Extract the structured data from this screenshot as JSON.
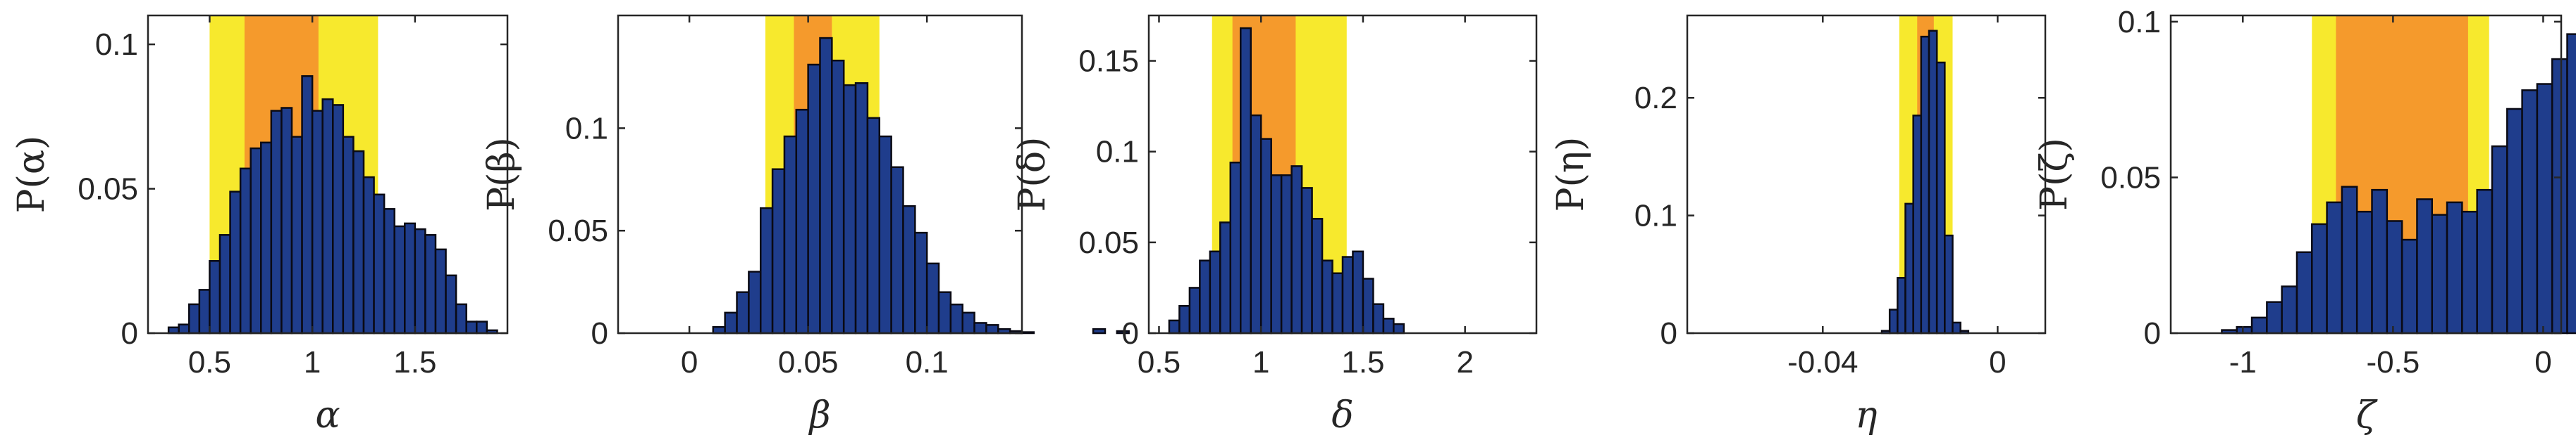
{
  "colors": {
    "bar_fill": "#1f3d8c",
    "bar_edge": "#0a0a14",
    "ci95": "#f7e92d",
    "ci68": "#f59a2c",
    "axis": "#262626"
  },
  "chart_data": [
    {
      "type": "bar",
      "subtype": "histogram",
      "xlabel": "α",
      "ylabel": "P(α)",
      "xlim": [
        0.2,
        1.95
      ],
      "ylim": [
        0,
        0.11
      ],
      "xticks": [
        0.5,
        1,
        1.5
      ],
      "xtick_labels": [
        "0.5",
        "1",
        "1.5"
      ],
      "yticks": [
        0,
        0.05,
        0.1
      ],
      "ytick_labels": [
        "0",
        "0.05",
        "0.1"
      ],
      "bin_start": 0.3,
      "bin_width": 0.05,
      "values": [
        0.002,
        0.003,
        0.01,
        0.015,
        0.025,
        0.034,
        0.049,
        0.057,
        0.064,
        0.066,
        0.077,
        0.078,
        0.068,
        0.089,
        0.077,
        0.081,
        0.079,
        0.068,
        0.063,
        0.054,
        0.048,
        0.043,
        0.037,
        0.038,
        0.036,
        0.034,
        0.029,
        0.02,
        0.01,
        0.004,
        0.004,
        0.001
      ],
      "bands": [
        {
          "name": "95%",
          "from": 0.5,
          "to": 1.32
        },
        {
          "name": "68%",
          "from": 0.67,
          "to": 1.03
        }
      ]
    },
    {
      "type": "bar",
      "subtype": "histogram",
      "xlabel": "β",
      "ylabel": "P(β)",
      "xlim": [
        -0.03,
        0.14
      ],
      "ylim": [
        0,
        0.155
      ],
      "xticks": [
        0,
        0.05,
        0.1
      ],
      "xtick_labels": [
        "0",
        "0.05",
        "0.1"
      ],
      "yticks": [
        0,
        0.05,
        0.1
      ],
      "ytick_labels": [
        "0",
        "0.05",
        "0.1"
      ],
      "bin_start": 0.01,
      "bin_width": 0.005,
      "values": [
        0.003,
        0.01,
        0.02,
        0.03,
        0.061,
        0.08,
        0.096,
        0.109,
        0.131,
        0.144,
        0.133,
        0.121,
        0.122,
        0.105,
        0.096,
        0.081,
        0.062,
        0.049,
        0.034,
        0.02,
        0.014,
        0.01,
        0.005,
        0.004,
        0.002,
        0.001,
        0.0005,
        0.0,
        0.0,
        0.0,
        0.0,
        0.0,
        0.002,
        0.0,
        0.001
      ],
      "bands": [
        {
          "name": "95%",
          "from": 0.032,
          "to": 0.08
        },
        {
          "name": "68%",
          "from": 0.044,
          "to": 0.06
        }
      ]
    },
    {
      "type": "bar",
      "subtype": "histogram",
      "xlabel": "δ",
      "ylabel": "P(δ)",
      "xlim": [
        0.45,
        2.35
      ],
      "ylim": [
        0,
        0.175
      ],
      "xticks": [
        0.5,
        1,
        1.5,
        2
      ],
      "xtick_labels": [
        "0.5",
        "1",
        "1.5",
        "2"
      ],
      "yticks": [
        0,
        0.05,
        0.1,
        0.15
      ],
      "ytick_labels": [
        "0",
        "0.05",
        "0.1",
        "0.15"
      ],
      "bin_start": 0.55,
      "bin_width": 0.05,
      "values": [
        0.007,
        0.015,
        0.025,
        0.04,
        0.045,
        0.061,
        0.094,
        0.168,
        0.12,
        0.107,
        0.087,
        0.087,
        0.092,
        0.08,
        0.063,
        0.04,
        0.033,
        0.042,
        0.045,
        0.03,
        0.016,
        0.008,
        0.005
      ],
      "bands": [
        {
          "name": "95%",
          "from": 0.76,
          "to": 1.42
        },
        {
          "name": "68%",
          "from": 0.86,
          "to": 1.17
        }
      ]
    },
    {
      "type": "bar",
      "subtype": "histogram",
      "xlabel": "η",
      "ylabel": "P(η)",
      "xlim": [
        -0.071,
        0.0109
      ],
      "ylim": [
        0,
        0.27
      ],
      "xticks": [
        -0.04,
        0
      ],
      "xtick_labels": [
        "-0.04",
        "0"
      ],
      "yticks": [
        0,
        0.1,
        0.2
      ],
      "ytick_labels": [
        "0",
        "0.1",
        "0.2"
      ],
      "bin_start": -0.0265,
      "bin_width": 0.0018,
      "values": [
        0.002,
        0.02,
        0.047,
        0.11,
        0.185,
        0.252,
        0.257,
        0.23,
        0.083,
        0.009,
        0.002
      ],
      "bands": [
        {
          "name": "95%",
          "from": -0.0225,
          "to": -0.0103
        },
        {
          "name": "68%",
          "from": -0.0184,
          "to": -0.0146
        }
      ]
    },
    {
      "type": "bar",
      "subtype": "histogram",
      "xlabel": "ζ",
      "ylabel": "P(ζ)",
      "xlim": [
        -1.24,
        0.06
      ],
      "ylim": [
        0,
        0.102
      ],
      "xticks": [
        -1,
        -0.5,
        0
      ],
      "xtick_labels": [
        "-1",
        "-0.5",
        "0"
      ],
      "yticks": [
        0,
        0.05,
        0.1
      ],
      "ytick_labels": [
        "0",
        "0.05",
        "0.1"
      ],
      "bin_start": -1.07,
      "bin_width": 0.05,
      "values": [
        0.001,
        0.002,
        0.005,
        0.01,
        0.015,
        0.026,
        0.035,
        0.042,
        0.047,
        0.039,
        0.046,
        0.036,
        0.03,
        0.043,
        0.038,
        0.042,
        0.039,
        0.046,
        0.06,
        0.072,
        0.078,
        0.08,
        0.088,
        0.096,
        0.077,
        0.053,
        0.034,
        0.021,
        0.02,
        0.01,
        0.003
      ],
      "bands": [
        {
          "name": "95%",
          "from": -0.77,
          "to": -0.18
        },
        {
          "name": "68%",
          "from": -0.69,
          "to": -0.25
        }
      ]
    }
  ]
}
